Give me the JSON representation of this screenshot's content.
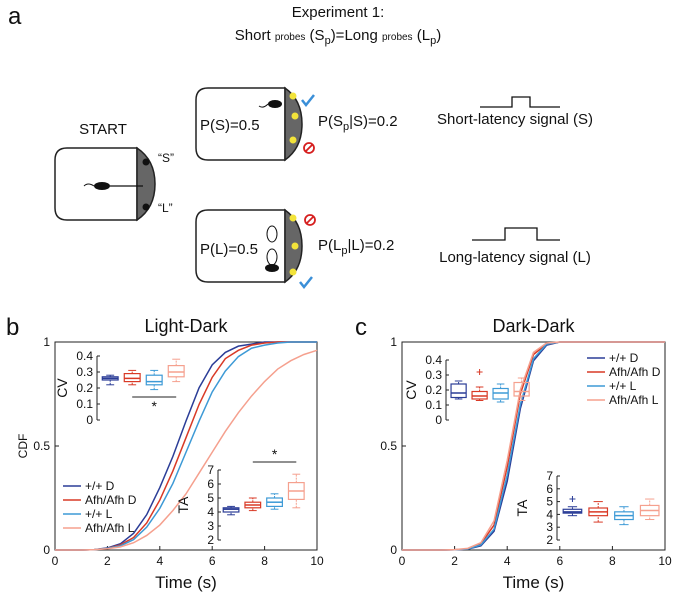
{
  "panel_a": {
    "label": "a",
    "heading": "Experiment 1:",
    "subheading": [
      "Short ",
      "probes",
      " (S",
      "p",
      ")=Long ",
      "probes",
      " (L",
      "p",
      ")"
    ],
    "start": "START",
    "s_cue": "“S”",
    "l_cue": "“L”",
    "p_s": "P(S)=0.5",
    "p_sp": [
      "P(S",
      "p",
      "|S)=0.2"
    ],
    "short_signal": "Short-latency signal (S)",
    "p_l": "P(L)=0.5",
    "p_lp": [
      "P(L",
      "p",
      "|L)=0.2"
    ],
    "long_signal": "Long-latency signal (L)"
  },
  "chart_data": [
    {
      "type": "line",
      "label": "b",
      "title": "Light-Dark",
      "x_label": "Time (s)",
      "y_label": "CDF",
      "x": [
        0,
        0.5,
        1,
        1.5,
        2,
        2.5,
        3,
        3.5,
        4,
        4.5,
        5,
        5.5,
        6,
        6.5,
        7,
        7.5,
        8,
        8.5,
        9,
        9.5,
        10
      ],
      "xlim": [
        0,
        10
      ],
      "xticks": [
        0,
        2,
        4,
        6,
        8,
        10
      ],
      "ylim": [
        0,
        1
      ],
      "yticks": [
        0,
        0.5,
        1
      ],
      "legend": "center left",
      "series": [
        {
          "name": "+/+ D",
          "color": "#2b3d97",
          "values": [
            0,
            0,
            0,
            0.002,
            0.01,
            0.03,
            0.08,
            0.17,
            0.3,
            0.45,
            0.62,
            0.78,
            0.89,
            0.95,
            0.98,
            0.99,
            1,
            1,
            1,
            1,
            1
          ]
        },
        {
          "name": "Afh/Afh D",
          "color": "#d93a26",
          "values": [
            0,
            0,
            0,
            0.002,
            0.008,
            0.025,
            0.06,
            0.13,
            0.24,
            0.38,
            0.54,
            0.7,
            0.83,
            0.92,
            0.96,
            0.985,
            0.995,
            1,
            1,
            1,
            1
          ]
        },
        {
          "name": "+/+ L",
          "color": "#3d9ad6",
          "values": [
            0,
            0,
            0,
            0.002,
            0.008,
            0.02,
            0.05,
            0.11,
            0.2,
            0.32,
            0.47,
            0.62,
            0.76,
            0.86,
            0.93,
            0.97,
            0.985,
            0.995,
            1,
            1,
            1
          ]
        },
        {
          "name": "Afh/Afh L",
          "color": "#f5a08e",
          "values": [
            0,
            0,
            0,
            0.002,
            0.006,
            0.015,
            0.035,
            0.07,
            0.12,
            0.19,
            0.27,
            0.37,
            0.47,
            0.57,
            0.66,
            0.74,
            0.81,
            0.87,
            0.91,
            0.94,
            0.96
          ]
        }
      ]
    },
    {
      "type": "box",
      "y_label": "CV",
      "ylim": [
        0,
        0.4
      ],
      "yticks": [
        0,
        0.1,
        0.2,
        0.3,
        0.4
      ],
      "annotation": "*",
      "boxes": [
        {
          "color": "#2b3d97",
          "values": [
            0.22,
            0.25,
            0.26,
            0.27,
            0.28
          ]
        },
        {
          "color": "#d93a26",
          "values": [
            0.22,
            0.24,
            0.26,
            0.29,
            0.31
          ]
        },
        {
          "color": "#3d9ad6",
          "values": [
            0.19,
            0.22,
            0.24,
            0.28,
            0.31
          ]
        },
        {
          "color": "#f5a08e",
          "values": [
            0.24,
            0.27,
            0.3,
            0.34,
            0.38
          ]
        }
      ]
    },
    {
      "type": "box",
      "y_label": "TA",
      "ylim": [
        2,
        7
      ],
      "yticks": [
        2,
        3,
        4,
        5,
        6,
        7
      ],
      "annotation": "*",
      "boxes": [
        {
          "color": "#2b3d97",
          "values": [
            3.8,
            4.0,
            4.2,
            4.3,
            4.4
          ]
        },
        {
          "color": "#d93a26",
          "values": [
            4.1,
            4.3,
            4.5,
            4.7,
            5.0
          ]
        },
        {
          "color": "#3d9ad6",
          "values": [
            4.2,
            4.4,
            4.7,
            5.0,
            5.3
          ]
        },
        {
          "color": "#f5a08e",
          "values": [
            4.3,
            4.9,
            5.5,
            6.1,
            6.7
          ]
        }
      ]
    },
    {
      "type": "line",
      "label": "c",
      "title": "Dark-Dark",
      "x_label": "Time (s)",
      "x": [
        0,
        0.5,
        1,
        1.5,
        2,
        2.5,
        3,
        3.5,
        4,
        4.5,
        5,
        5.5,
        6,
        6.5,
        7,
        7.5,
        8,
        8.5,
        9,
        9.5,
        10
      ],
      "xlim": [
        0,
        10
      ],
      "xticks": [
        0,
        2,
        4,
        6,
        8,
        10
      ],
      "ylim": [
        0,
        1
      ],
      "yticks": [
        0,
        0.5,
        1
      ],
      "legend": "upper right",
      "series": [
        {
          "name": "+/+ D",
          "color": "#2b3d97",
          "values": [
            0,
            0,
            0,
            0,
            0.001,
            0.004,
            0.02,
            0.09,
            0.33,
            0.68,
            0.91,
            0.985,
            1,
            1,
            1,
            1,
            1,
            1,
            1,
            1,
            1
          ]
        },
        {
          "name": "Afh/Afh D",
          "color": "#d93a26",
          "values": [
            0,
            0,
            0,
            0,
            0.001,
            0.005,
            0.03,
            0.12,
            0.4,
            0.75,
            0.94,
            0.99,
            1,
            1,
            1,
            1,
            1,
            1,
            1,
            1,
            1
          ]
        },
        {
          "name": "+/+ L",
          "color": "#3d9ad6",
          "values": [
            0,
            0,
            0,
            0,
            0.001,
            0.005,
            0.025,
            0.1,
            0.36,
            0.7,
            0.92,
            0.99,
            1,
            1,
            1,
            1,
            1,
            1,
            1,
            1,
            1
          ]
        },
        {
          "name": "Afh/Afh L",
          "color": "#f5a08e",
          "values": [
            0,
            0,
            0,
            0,
            0.002,
            0.008,
            0.035,
            0.14,
            0.43,
            0.77,
            0.95,
            0.995,
            1,
            1,
            1,
            1,
            1,
            1,
            1,
            1,
            1
          ]
        }
      ]
    },
    {
      "type": "box",
      "y_label": "CV",
      "ylim": [
        0,
        0.4
      ],
      "yticks": [
        0,
        0.1,
        0.2,
        0.3,
        0.4
      ],
      "boxes": [
        {
          "color": "#2b3d97",
          "values": [
            0.14,
            0.15,
            0.18,
            0.24,
            0.26
          ]
        },
        {
          "color": "#d93a26",
          "values": [
            0.13,
            0.14,
            0.16,
            0.19,
            0.22
          ],
          "outliers": [
            0.32
          ]
        },
        {
          "color": "#3d9ad6",
          "values": [
            0.12,
            0.14,
            0.18,
            0.21,
            0.24
          ]
        },
        {
          "color": "#f5a08e",
          "values": [
            0.13,
            0.16,
            0.19,
            0.25,
            0.28
          ]
        }
      ]
    },
    {
      "type": "box",
      "y_label": "TA",
      "ylim": [
        2,
        7
      ],
      "yticks": [
        2,
        3,
        4,
        5,
        6,
        7
      ],
      "boxes": [
        {
          "color": "#2b3d97",
          "values": [
            3.9,
            4.1,
            4.2,
            4.4,
            4.6
          ],
          "outliers": [
            5.2
          ]
        },
        {
          "color": "#d93a26",
          "values": [
            3.4,
            3.9,
            4.2,
            4.5,
            5.0
          ]
        },
        {
          "color": "#3d9ad6",
          "values": [
            3.2,
            3.6,
            3.9,
            4.2,
            4.6
          ]
        },
        {
          "color": "#f5a08e",
          "values": [
            3.6,
            3.9,
            4.3,
            4.7,
            5.2
          ]
        }
      ]
    }
  ]
}
